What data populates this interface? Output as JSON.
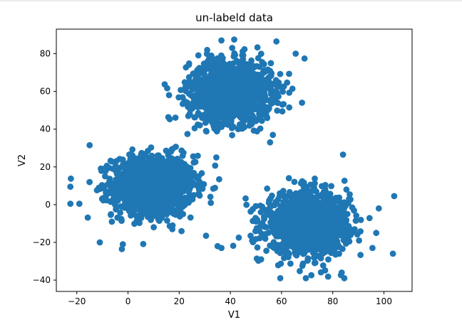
{
  "chart_data": {
    "type": "scatter",
    "title": "un-labeld data",
    "xlabel": "V1",
    "ylabel": "V2",
    "xlim": [
      -28,
      111
    ],
    "ylim": [
      -46,
      93
    ],
    "x_ticks": [
      -20,
      0,
      20,
      40,
      60,
      80,
      100
    ],
    "y_ticks": [
      -40,
      -20,
      0,
      20,
      40,
      60,
      80
    ],
    "grid": false,
    "legend": "none",
    "marker_color": "#1f77b4",
    "clusters": [
      {
        "center": [
          10,
          10
        ],
        "spread": [
          8,
          8
        ],
        "count": 1300
      },
      {
        "center": [
          40,
          60
        ],
        "spread": [
          8,
          8
        ],
        "count": 1300
      },
      {
        "center": [
          70,
          -10
        ],
        "spread": [
          8,
          8
        ],
        "count": 1300
      }
    ],
    "outlier_points": [
      [
        -22.5,
        9.5
      ],
      [
        -22.5,
        0.5
      ],
      [
        -19,
        0.5
      ],
      [
        -15,
        31.5
      ],
      [
        -11,
        -20
      ],
      [
        -2,
        -21
      ],
      [
        104,
        4.5
      ],
      [
        103.5,
        -26
      ],
      [
        95.5,
        -23
      ],
      [
        98,
        -2
      ],
      [
        97,
        -15
      ],
      [
        84,
        26.5
      ],
      [
        36.5,
        87
      ],
      [
        41.5,
        87.5
      ],
      [
        58,
        86.5
      ],
      [
        65.5,
        80
      ],
      [
        68,
        54
      ],
      [
        63,
        51.5
      ],
      [
        55.5,
        33
      ],
      [
        34.5,
        25
      ],
      [
        36.5,
        -23
      ],
      [
        35,
        -22
      ],
      [
        30.5,
        -16.5
      ],
      [
        52,
        -29
      ],
      [
        59.5,
        -39
      ],
      [
        69.5,
        -39
      ],
      [
        83.5,
        -36
      ],
      [
        84.5,
        -39
      ]
    ]
  }
}
